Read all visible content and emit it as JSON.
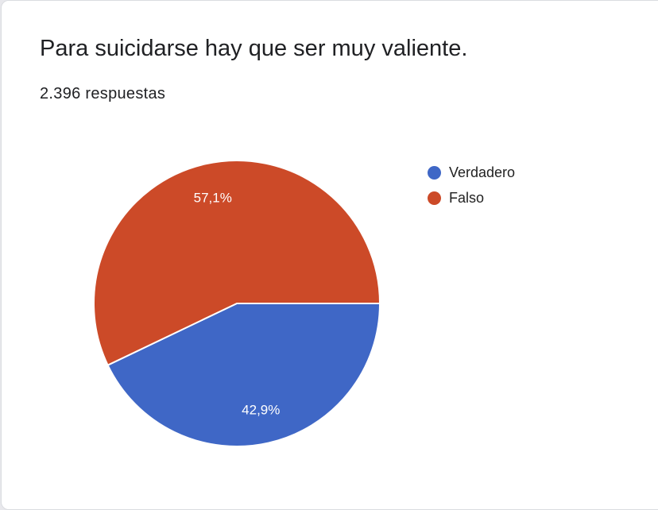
{
  "title": "Para suicidarse hay que ser muy valiente.",
  "responses": "2.396 respuestas",
  "chart_data": {
    "type": "pie",
    "categories": [
      "Verdadero",
      "Falso"
    ],
    "values": [
      42.9,
      57.1
    ],
    "labels": [
      "42,9%",
      "57,1%"
    ],
    "colors": [
      "#3f67c6",
      "#cc4a28"
    ],
    "legend_position": "right"
  }
}
